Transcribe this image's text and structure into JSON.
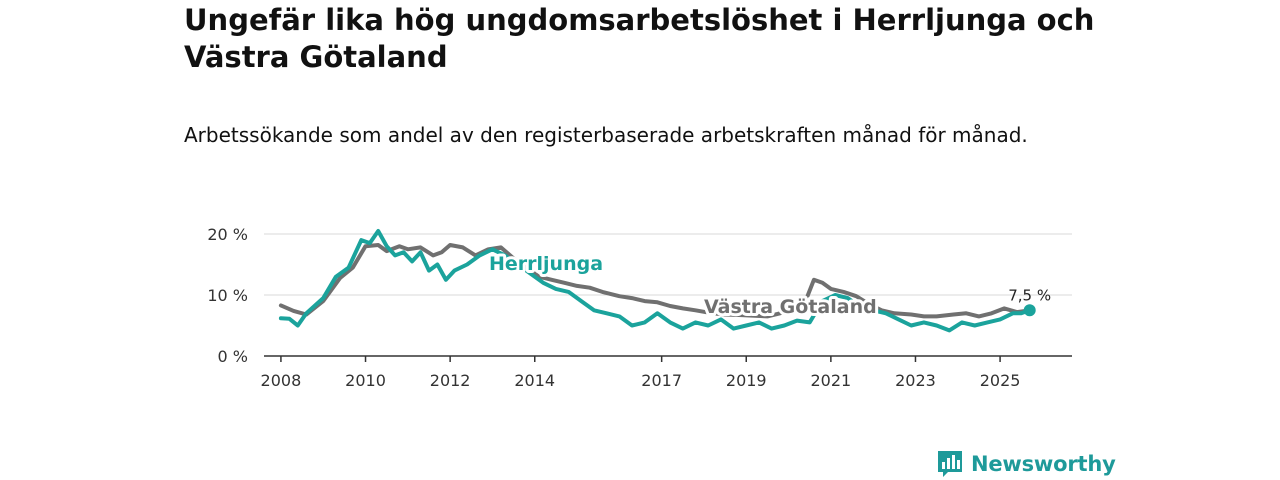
{
  "title": "Ungefär lika hög ungdomsarbetslöshet i Herrljunga och Västra Götaland",
  "subtitle": "Arbetssökande som andel av den registerbaserade arbetskraften månad för månad.",
  "brand": "Newsworthy",
  "colors": {
    "herrljunga": "#1ba39c",
    "vastra": "#707070",
    "axis": "#333333",
    "grid": "#d9d9d9"
  },
  "chart_data": {
    "type": "line",
    "title": "Ungefär lika hög ungdomsarbetslöshet i Herrljunga och Västra Götaland",
    "subtitle": "Arbetssökande som andel av den registerbaserade arbetskraften månad för månad.",
    "xlabel": "",
    "ylabel": "",
    "xlim": [
      2007.6,
      2026.7
    ],
    "ylim": [
      0,
      20
    ],
    "yticks": [
      0,
      10,
      20
    ],
    "ytick_labels": [
      "0 %",
      "10 %",
      "20 %"
    ],
    "xticks": [
      2008,
      2010,
      2012,
      2014,
      2017,
      2019,
      2021,
      2023,
      2025
    ],
    "xtick_labels": [
      "2008",
      "2010",
      "2012",
      "2014",
      "2017",
      "2019",
      "2021",
      "2023",
      "2025"
    ],
    "grid": true,
    "end_label": "7,5 %",
    "end_point": {
      "x": 2025.7,
      "y": 7.5
    },
    "series": [
      {
        "name": "Västra Götaland",
        "label": "Västra Götaland",
        "x": [
          2008.0,
          2008.3,
          2008.6,
          2009.0,
          2009.4,
          2009.7,
          2010.0,
          2010.3,
          2010.5,
          2010.8,
          2011.0,
          2011.3,
          2011.6,
          2011.8,
          2012.0,
          2012.3,
          2012.6,
          2012.9,
          2013.2,
          2013.5,
          2013.8,
          2014.1,
          2014.4,
          2014.7,
          2015.0,
          2015.3,
          2015.6,
          2016.0,
          2016.3,
          2016.6,
          2016.9,
          2017.2,
          2017.5,
          2017.8,
          2018.2,
          2018.5,
          2018.9,
          2019.2,
          2019.5,
          2019.8,
          2020.1,
          2020.4,
          2020.6,
          2020.8,
          2021.0,
          2021.3,
          2021.6,
          2021.9,
          2022.2,
          2022.5,
          2022.9,
          2023.2,
          2023.5,
          2023.9,
          2024.2,
          2024.5,
          2024.8,
          2025.1,
          2025.4,
          2025.7
        ],
        "values": [
          8.3,
          7.4,
          6.8,
          9.0,
          12.8,
          14.5,
          18.0,
          18.2,
          17.2,
          18.0,
          17.5,
          17.8,
          16.5,
          17.0,
          18.2,
          17.8,
          16.5,
          17.5,
          17.8,
          16.0,
          14.5,
          13.0,
          12.5,
          12.0,
          11.5,
          11.2,
          10.5,
          9.8,
          9.5,
          9.0,
          8.8,
          8.2,
          7.8,
          7.5,
          7.0,
          6.8,
          6.7,
          6.6,
          6.5,
          7.0,
          7.8,
          9.0,
          12.5,
          12.0,
          11.0,
          10.5,
          9.8,
          8.5,
          7.5,
          7.0,
          6.8,
          6.5,
          6.5,
          6.8,
          7.0,
          6.5,
          7.0,
          7.8,
          7.2,
          7.5
        ]
      },
      {
        "name": "Herrljunga",
        "label": "Herrljunga",
        "x": [
          2008.0,
          2008.2,
          2008.4,
          2008.6,
          2009.0,
          2009.3,
          2009.6,
          2009.9,
          2010.1,
          2010.3,
          2010.5,
          2010.7,
          2010.9,
          2011.1,
          2011.3,
          2011.5,
          2011.7,
          2011.9,
          2012.1,
          2012.4,
          2012.7,
          2013.0,
          2013.3,
          2013.6,
          2013.9,
          2014.2,
          2014.5,
          2014.8,
          2015.1,
          2015.4,
          2015.7,
          2016.0,
          2016.3,
          2016.6,
          2016.9,
          2017.2,
          2017.5,
          2017.8,
          2018.1,
          2018.4,
          2018.7,
          2019.0,
          2019.3,
          2019.6,
          2019.9,
          2020.2,
          2020.5,
          2020.8,
          2021.1,
          2021.4,
          2021.7,
          2022.0,
          2022.3,
          2022.6,
          2022.9,
          2023.2,
          2023.5,
          2023.8,
          2024.1,
          2024.4,
          2024.7,
          2025.0,
          2025.3,
          2025.5,
          2025.7
        ],
        "values": [
          6.2,
          6.1,
          5.0,
          7.0,
          9.5,
          13.0,
          14.5,
          19.0,
          18.5,
          20.5,
          18.0,
          16.5,
          17.0,
          15.5,
          17.0,
          14.0,
          15.0,
          12.5,
          14.0,
          15.0,
          16.5,
          17.5,
          16.5,
          15.0,
          13.5,
          12.0,
          11.0,
          10.5,
          9.0,
          7.5,
          7.0,
          6.5,
          5.0,
          5.5,
          7.0,
          5.5,
          4.5,
          5.5,
          5.0,
          6.0,
          4.5,
          5.0,
          5.5,
          4.5,
          5.0,
          5.8,
          5.5,
          9.0,
          10.0,
          9.5,
          8.0,
          7.5,
          7.0,
          6.0,
          5.0,
          5.5,
          5.0,
          4.2,
          5.5,
          5.0,
          5.5,
          6.0,
          7.0,
          7.0,
          7.5
        ]
      }
    ]
  }
}
